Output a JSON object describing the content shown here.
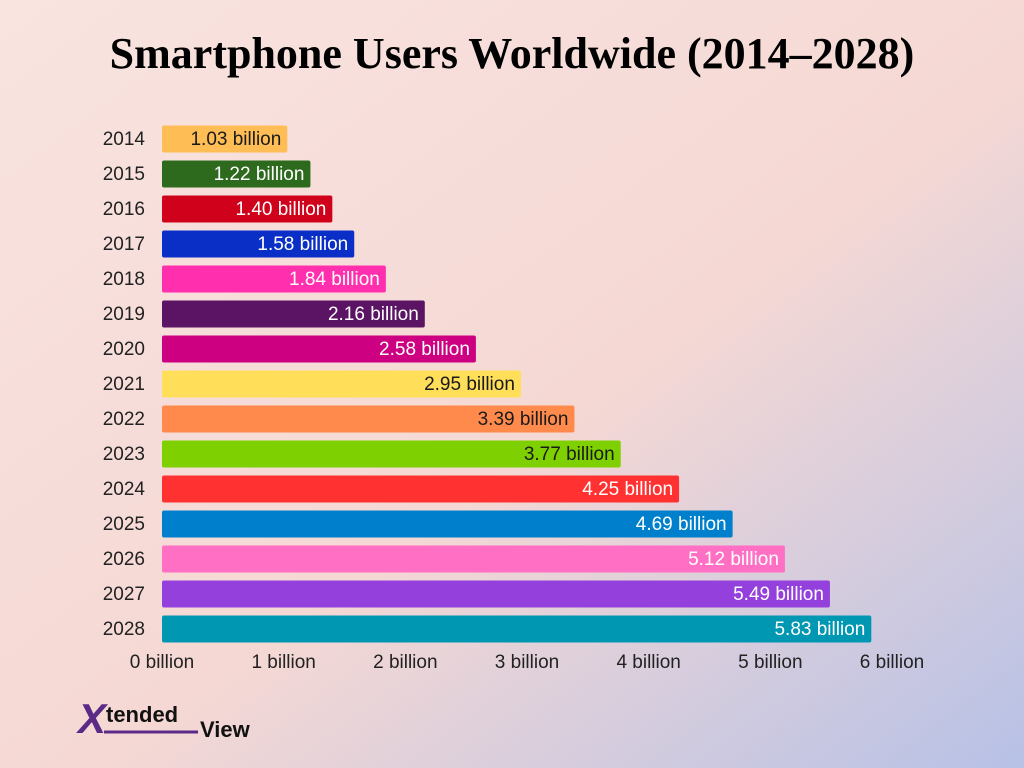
{
  "chart_data": {
    "type": "barh",
    "title": "Smartphone Users Worldwide (2014–2028)",
    "categories": [
      "2014",
      "2015",
      "2016",
      "2017",
      "2018",
      "2019",
      "2020",
      "2021",
      "2022",
      "2023",
      "2024",
      "2025",
      "2026",
      "2027",
      "2028"
    ],
    "values": [
      1.03,
      1.22,
      1.4,
      1.58,
      1.84,
      2.16,
      2.58,
      2.95,
      3.39,
      3.77,
      4.25,
      4.69,
      5.12,
      5.49,
      5.83
    ],
    "value_labels": [
      "1.03 billion",
      "1.22 billion",
      "1.40 billion",
      "1.58 billion",
      "1.84 billion",
      "2.16 billion",
      "2.58 billion",
      "2.95 billion",
      "3.39 billion",
      "3.77 billion",
      "4.25 billion",
      "4.69 billion",
      "5.12 billion",
      "5.49 billion",
      "5.83 billion"
    ],
    "colors": [
      "#ffbe55",
      "#2d6a1e",
      "#d0021b",
      "#0a2fc6",
      "#ff2fae",
      "#5a1463",
      "#cc0080",
      "#ffde59",
      "#ff8a4c",
      "#7ed000",
      "#ff3131",
      "#0080cc",
      "#ff6fc4",
      "#9440dd",
      "#0097b2"
    ],
    "label_colors": [
      "#1a1a1a",
      "#ffffff",
      "#ffffff",
      "#ffffff",
      "#ffffff",
      "#ffffff",
      "#ffffff",
      "#1a1a1a",
      "#1a1a1a",
      "#1a1a1a",
      "#ffffff",
      "#ffffff",
      "#ffffff",
      "#ffffff",
      "#ffffff"
    ],
    "xlim": [
      0,
      6
    ],
    "xticks": [
      {
        "value": 0,
        "label": "0 billion"
      },
      {
        "value": 1,
        "label": "1 billion"
      },
      {
        "value": 2,
        "label": "2 billion"
      },
      {
        "value": 3,
        "label": "3 billion"
      },
      {
        "value": 4,
        "label": "4 billion"
      },
      {
        "value": 5,
        "label": "5 billion"
      },
      {
        "value": 6,
        "label": "6 billion"
      }
    ],
    "logo": [
      "X",
      "tended",
      "View"
    ]
  }
}
